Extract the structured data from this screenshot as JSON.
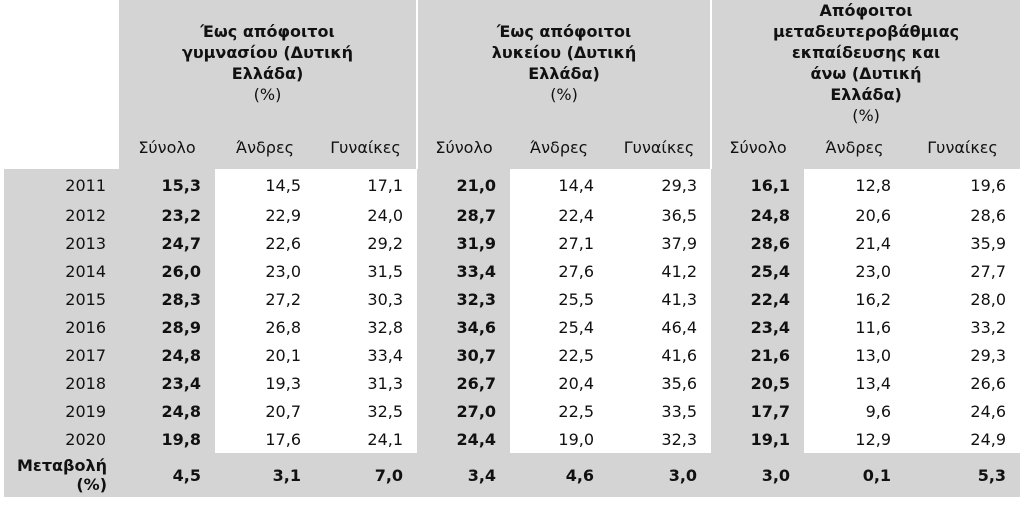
{
  "groups": [
    {
      "title": "Έως απόφοιτοι γυμνασίου (Δυτική Ελλάδα)",
      "unit": "(%)"
    },
    {
      "title": "Έως απόφοιτοι λυκείου (Δυτική Ελλάδα)",
      "unit": "(%)"
    },
    {
      "title": "Απόφοιτοι μεταδευτεροβάθμιας εκπαίδευσης και άνω (Δυτική Ελλάδα)",
      "unit": "(%)"
    }
  ],
  "subheaders": [
    "Σύνολο",
    "Άνδρες",
    "Γυναίκες"
  ],
  "rows": [
    {
      "year": "2011",
      "v": [
        "15,3",
        "14,5",
        "17,1",
        "21,0",
        "14,4",
        "29,3",
        "16,1",
        "12,8",
        "19,6"
      ]
    },
    {
      "year": "2012",
      "v": [
        "23,2",
        "22,9",
        "24,0",
        "28,7",
        "22,4",
        "36,5",
        "24,8",
        "20,6",
        "28,6"
      ]
    },
    {
      "year": "2013",
      "v": [
        "24,7",
        "22,6",
        "29,2",
        "31,9",
        "27,1",
        "37,9",
        "28,6",
        "21,4",
        "35,9"
      ]
    },
    {
      "year": "2014",
      "v": [
        "26,0",
        "23,0",
        "31,5",
        "33,4",
        "27,6",
        "41,2",
        "25,4",
        "23,0",
        "27,7"
      ]
    },
    {
      "year": "2015",
      "v": [
        "28,3",
        "27,2",
        "30,3",
        "32,3",
        "25,5",
        "41,3",
        "22,4",
        "16,2",
        "28,0"
      ]
    },
    {
      "year": "2016",
      "v": [
        "28,9",
        "26,8",
        "32,8",
        "34,6",
        "25,4",
        "46,4",
        "23,4",
        "11,6",
        "33,2"
      ]
    },
    {
      "year": "2017",
      "v": [
        "24,8",
        "20,1",
        "33,4",
        "30,7",
        "22,5",
        "41,6",
        "21,6",
        "13,0",
        "29,3"
      ]
    },
    {
      "year": "2018",
      "v": [
        "23,4",
        "19,3",
        "31,3",
        "26,7",
        "20,4",
        "35,6",
        "20,5",
        "13,4",
        "26,6"
      ]
    },
    {
      "year": "2019",
      "v": [
        "24,8",
        "20,7",
        "32,5",
        "27,0",
        "22,5",
        "33,5",
        "17,7",
        "9,6",
        "24,6"
      ]
    },
    {
      "year": "2020",
      "v": [
        "19,8",
        "17,6",
        "24,1",
        "24,4",
        "19,0",
        "32,3",
        "19,1",
        "12,9",
        "24,9"
      ]
    }
  ],
  "change": {
    "label_line1": "Μεταβολή",
    "label_line2": "(%)",
    "v": [
      "4,5",
      "3,1",
      "7,0",
      "3,4",
      "4,6",
      "3,0",
      "3,0",
      "0,1",
      "5,3"
    ]
  }
}
